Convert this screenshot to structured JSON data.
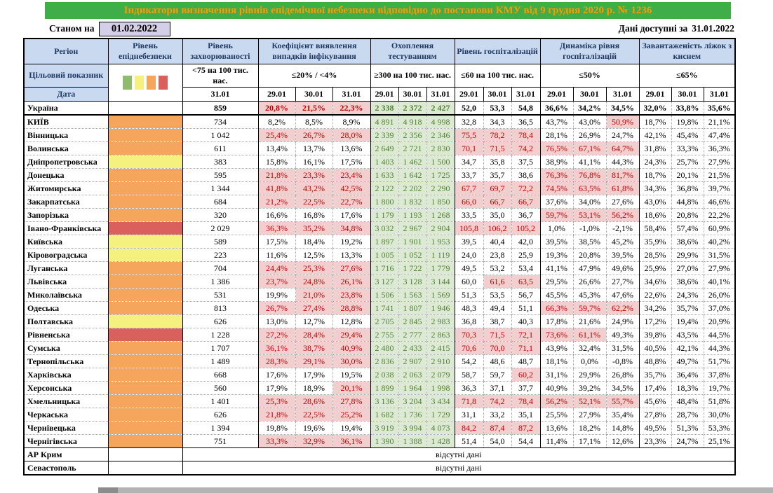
{
  "title": "Індикатори визначення рівнів епідемічної небезпеки відповідно до постанови КМУ від 9 грудня 2020 р. № 1236",
  "meta": {
    "as_of_label": "Станом на",
    "as_of_date": "01.02.2022",
    "available_label": "Дані доступні за",
    "available_date": "31.01.2022"
  },
  "colors": {
    "title_bg": "#3FAE49",
    "title_text": "#FF9900",
    "header_bg": "#C9DAF0",
    "header_text": "#1F3864",
    "highlight_bg": "#F2CECE",
    "highlight_text": "#C00000",
    "testing_bg": "#DCE9D3",
    "testing_text": "#538135",
    "badge_bg": "#D5CEE8"
  },
  "legend": {
    "names": [
      "green-level",
      "yellow-level",
      "orange-level",
      "red-level"
    ],
    "colors": [
      "#8FBB6F",
      "#F5F17E",
      "#F5A65C",
      "#D9605C"
    ]
  },
  "header": {
    "region_label": "Регіон",
    "target_row_label": "Цільовий показник",
    "date_row_label": "Дата",
    "level_title": "Рівень епіднебезпеки",
    "incidence_title": "Рівень захворюваності",
    "incidence_target": "<75 на 100 тис. нас.",
    "incidence_date": "31.01",
    "detection_title": "Коефіцієнт виявлення випадків інфікування",
    "detection_target": "≤20% / <4%",
    "testing_title": "Охоплення тестуванням",
    "testing_target": "≥300 на 100 тис. нас.",
    "hosp_title": "Рівень госпіталізацій",
    "hosp_target": "≤60 на 100 тис. нас.",
    "dynamics_title": "Динаміка рівня госпіталізацій",
    "dynamics_target": "≤50%",
    "beds_title": "Завантаженість ліжок з киснем",
    "beds_target": "≤65%",
    "dates": [
      "29.01",
      "30.01",
      "31.01"
    ]
  },
  "thresholds": {
    "detection": 20,
    "hosp": 60,
    "dynamics": 50,
    "beds": 65
  },
  "no_data_label": "відсутні дані",
  "rows": [
    {
      "name": "Україна",
      "level": "none",
      "total": true,
      "incidence": "859",
      "detection": [
        "20,8%",
        "21,5%",
        "22,3%"
      ],
      "testing": [
        "2 338",
        "2 372",
        "2 427"
      ],
      "hosp": [
        "52,0",
        "53,3",
        "54,8"
      ],
      "dynamics": [
        "36,6%",
        "34,2%",
        "34,5%"
      ],
      "beds": [
        "32,0%",
        "33,8%",
        "35,6%"
      ]
    },
    {
      "name": "КИЇВ",
      "level": "orange",
      "incidence": "734",
      "detection": [
        "8,2%",
        "8,5%",
        "8,9%"
      ],
      "testing": [
        "4 891",
        "4 918",
        "4 998"
      ],
      "hosp": [
        "32,8",
        "34,3",
        "36,5"
      ],
      "dynamics": [
        "43,7%",
        "43,0%",
        "50,9%"
      ],
      "beds": [
        "18,7%",
        "19,8%",
        "21,1%"
      ]
    },
    {
      "name": "Вінницька",
      "level": "orange",
      "incidence": "1 042",
      "detection": [
        "25,4%",
        "26,7%",
        "28,0%"
      ],
      "testing": [
        "2 339",
        "2 356",
        "2 346"
      ],
      "hosp": [
        "75,5",
        "78,2",
        "78,4"
      ],
      "dynamics": [
        "28,1%",
        "26,9%",
        "24,7%"
      ],
      "beds": [
        "42,1%",
        "45,4%",
        "47,4%"
      ]
    },
    {
      "name": "Волинська",
      "level": "orange",
      "incidence": "611",
      "detection": [
        "13,4%",
        "13,7%",
        "13,6%"
      ],
      "testing": [
        "2 649",
        "2 721",
        "2 830"
      ],
      "hosp": [
        "70,1",
        "71,5",
        "74,2"
      ],
      "dynamics": [
        "76,5%",
        "67,1%",
        "64,7%"
      ],
      "beds": [
        "31,8%",
        "33,3%",
        "36,3%"
      ]
    },
    {
      "name": "Дніпропетровська",
      "level": "yellow",
      "incidence": "383",
      "detection": [
        "15,8%",
        "16,1%",
        "17,5%"
      ],
      "testing": [
        "1 403",
        "1 462",
        "1 500"
      ],
      "hosp": [
        "34,7",
        "35,8",
        "37,5"
      ],
      "dynamics": [
        "38,9%",
        "41,1%",
        "44,3%"
      ],
      "beds": [
        "24,3%",
        "25,7%",
        "27,9%"
      ]
    },
    {
      "name": "Донецька",
      "level": "orange",
      "incidence": "595",
      "detection": [
        "21,8%",
        "23,3%",
        "23,4%"
      ],
      "testing": [
        "1 633",
        "1 642",
        "1 725"
      ],
      "hosp": [
        "33,7",
        "35,7",
        "38,6"
      ],
      "dynamics": [
        "76,3%",
        "76,8%",
        "81,7%"
      ],
      "beds": [
        "18,7%",
        "20,1%",
        "21,5%"
      ]
    },
    {
      "name": "Житомирська",
      "level": "orange",
      "incidence": "1 344",
      "detection": [
        "41,8%",
        "43,2%",
        "42,5%"
      ],
      "testing": [
        "2 122",
        "2 202",
        "2 290"
      ],
      "hosp": [
        "67,7",
        "69,7",
        "72,2"
      ],
      "dynamics": [
        "74,5%",
        "63,5%",
        "61,8%"
      ],
      "beds": [
        "34,3%",
        "36,8%",
        "39,7%"
      ]
    },
    {
      "name": "Закарпатська",
      "level": "orange",
      "incidence": "684",
      "detection": [
        "21,2%",
        "22,5%",
        "22,7%"
      ],
      "testing": [
        "1 800",
        "1 832",
        "1 850"
      ],
      "hosp": [
        "66,0",
        "66,7",
        "66,7"
      ],
      "dynamics": [
        "37,6%",
        "34,0%",
        "27,6%"
      ],
      "beds": [
        "43,0%",
        "44,8%",
        "46,6%"
      ]
    },
    {
      "name": "Запорізька",
      "level": "orange",
      "incidence": "320",
      "detection": [
        "16,6%",
        "16,8%",
        "17,6%"
      ],
      "testing": [
        "1 179",
        "1 193",
        "1 268"
      ],
      "hosp": [
        "33,5",
        "35,0",
        "36,7"
      ],
      "dynamics": [
        "59,7%",
        "53,1%",
        "56,2%"
      ],
      "beds": [
        "18,6%",
        "20,8%",
        "22,2%"
      ]
    },
    {
      "name": "Івано-Франківська",
      "level": "red",
      "incidence": "2 029",
      "detection": [
        "36,3%",
        "35,2%",
        "34,8%"
      ],
      "testing": [
        "3 032",
        "2 967",
        "2 904"
      ],
      "hosp": [
        "105,8",
        "106,2",
        "105,2"
      ],
      "dynamics": [
        "1,0%",
        "-1,0%",
        "-2,1%"
      ],
      "beds": [
        "58,4%",
        "57,4%",
        "60,9%"
      ]
    },
    {
      "name": "Київська",
      "level": "yellow",
      "incidence": "589",
      "detection": [
        "17,5%",
        "18,4%",
        "19,2%"
      ],
      "testing": [
        "1 897",
        "1 901",
        "1 953"
      ],
      "hosp": [
        "39,5",
        "40,4",
        "42,0"
      ],
      "dynamics": [
        "39,5%",
        "38,5%",
        "45,2%"
      ],
      "beds": [
        "35,9%",
        "38,6%",
        "40,2%"
      ]
    },
    {
      "name": "Кіровоградська",
      "level": "yellow",
      "incidence": "223",
      "detection": [
        "11,6%",
        "12,5%",
        "13,3%"
      ],
      "testing": [
        "1 005",
        "1 052",
        "1 119"
      ],
      "hosp": [
        "24,0",
        "23,8",
        "25,9"
      ],
      "dynamics": [
        "19,3%",
        "20,8%",
        "39,5%"
      ],
      "beds": [
        "28,5%",
        "29,9%",
        "31,5%"
      ]
    },
    {
      "name": "Луганська",
      "level": "orange",
      "incidence": "704",
      "detection": [
        "24,4%",
        "25,3%",
        "27,6%"
      ],
      "testing": [
        "1 716",
        "1 722",
        "1 779"
      ],
      "hosp": [
        "49,5",
        "53,2",
        "53,4"
      ],
      "dynamics": [
        "41,1%",
        "47,9%",
        "49,6%"
      ],
      "beds": [
        "25,9%",
        "27,0%",
        "27,9%"
      ]
    },
    {
      "name": "Львівська",
      "level": "orange",
      "incidence": "1 386",
      "detection": [
        "23,7%",
        "24,8%",
        "26,1%"
      ],
      "testing": [
        "3 127",
        "3 128",
        "3 144"
      ],
      "hosp": [
        "60,0",
        "61,6",
        "63,5"
      ],
      "dynamics": [
        "29,5%",
        "26,6%",
        "27,7%"
      ],
      "beds": [
        "34,6%",
        "38,6%",
        "40,1%"
      ]
    },
    {
      "name": "Миколаївська",
      "level": "orange",
      "incidence": "531",
      "detection": [
        "19,9%",
        "21,0%",
        "23,8%"
      ],
      "testing": [
        "1 506",
        "1 563",
        "1 569"
      ],
      "hosp": [
        "51,3",
        "53,5",
        "56,7"
      ],
      "dynamics": [
        "45,5%",
        "45,3%",
        "47,6%"
      ],
      "beds": [
        "22,6%",
        "24,3%",
        "26,0%"
      ]
    },
    {
      "name": "Одеська",
      "level": "orange",
      "incidence": "813",
      "detection": [
        "26,7%",
        "27,4%",
        "28,8%"
      ],
      "testing": [
        "1 741",
        "1 807",
        "1 946"
      ],
      "hosp": [
        "48,3",
        "49,4",
        "51,1"
      ],
      "dynamics": [
        "66,3%",
        "59,7%",
        "62,2%"
      ],
      "beds": [
        "34,2%",
        "35,7%",
        "37,0%"
      ]
    },
    {
      "name": "Полтавська",
      "level": "yellow",
      "incidence": "626",
      "detection": [
        "13,0%",
        "12,7%",
        "12,8%"
      ],
      "testing": [
        "2 705",
        "2 845",
        "2 983"
      ],
      "hosp": [
        "36,8",
        "38,7",
        "40,3"
      ],
      "dynamics": [
        "17,8%",
        "21,6%",
        "24,9%"
      ],
      "beds": [
        "17,2%",
        "19,4%",
        "20,9%"
      ]
    },
    {
      "name": "Рівненська",
      "level": "red",
      "incidence": "1 228",
      "detection": [
        "27,2%",
        "28,4%",
        "29,4%"
      ],
      "testing": [
        "2 755",
        "2 777",
        "2 863"
      ],
      "hosp": [
        "70,3",
        "71,5",
        "72,1"
      ],
      "dynamics": [
        "73,6%",
        "61,1%",
        "49,3%"
      ],
      "beds": [
        "39,8%",
        "43,5%",
        "44,5%"
      ]
    },
    {
      "name": "Сумська",
      "level": "orange",
      "incidence": "1 707",
      "detection": [
        "36,1%",
        "38,7%",
        "40,9%"
      ],
      "testing": [
        "2 480",
        "2 433",
        "2 415"
      ],
      "hosp": [
        "70,6",
        "70,0",
        "71,1"
      ],
      "dynamics": [
        "43,9%",
        "32,4%",
        "31,5%"
      ],
      "beds": [
        "40,5%",
        "42,1%",
        "44,3%"
      ]
    },
    {
      "name": "Тернопільська",
      "level": "orange",
      "incidence": "1 489",
      "detection": [
        "28,3%",
        "29,1%",
        "30,0%"
      ],
      "testing": [
        "2 836",
        "2 907",
        "2 910"
      ],
      "hosp": [
        "54,2",
        "48,6",
        "48,7"
      ],
      "dynamics": [
        "18,1%",
        "0,0%",
        "-0,8%"
      ],
      "beds": [
        "48,8%",
        "49,7%",
        "51,7%"
      ]
    },
    {
      "name": "Харківська",
      "level": "orange",
      "incidence": "668",
      "detection": [
        "17,6%",
        "17,9%",
        "19,5%"
      ],
      "testing": [
        "2 038",
        "2 063",
        "2 079"
      ],
      "hosp": [
        "58,7",
        "59,7",
        "60,2"
      ],
      "dynamics": [
        "31,1%",
        "29,9%",
        "26,8%"
      ],
      "beds": [
        "35,7%",
        "36,4%",
        "37,8%"
      ]
    },
    {
      "name": "Херсонська",
      "level": "orange",
      "incidence": "560",
      "detection": [
        "17,9%",
        "18,9%",
        "20,1%"
      ],
      "testing": [
        "1 899",
        "1 964",
        "1 998"
      ],
      "hosp": [
        "36,3",
        "37,1",
        "37,7"
      ],
      "dynamics": [
        "40,9%",
        "39,2%",
        "34,5%"
      ],
      "beds": [
        "17,4%",
        "18,3%",
        "19,7%"
      ]
    },
    {
      "name": "Хмельницька",
      "level": "orange",
      "incidence": "1 401",
      "detection": [
        "25,3%",
        "28,6%",
        "27,8%"
      ],
      "testing": [
        "3 136",
        "3 204",
        "3 434"
      ],
      "hosp": [
        "71,8",
        "74,2",
        "78,4"
      ],
      "dynamics": [
        "56,2%",
        "52,1%",
        "55,7%"
      ],
      "beds": [
        "45,6%",
        "48,4%",
        "51,8%"
      ]
    },
    {
      "name": "Черкаська",
      "level": "orange",
      "incidence": "626",
      "detection": [
        "21,8%",
        "22,5%",
        "25,2%"
      ],
      "testing": [
        "1 682",
        "1 736",
        "1 729"
      ],
      "hosp": [
        "31,1",
        "33,2",
        "35,1"
      ],
      "dynamics": [
        "25,5%",
        "27,9%",
        "35,4%"
      ],
      "beds": [
        "27,8%",
        "28,7%",
        "30,0%"
      ]
    },
    {
      "name": "Чернівецька",
      "level": "orange",
      "incidence": "1 394",
      "detection": [
        "19,8%",
        "19,6%",
        "19,4%"
      ],
      "testing": [
        "3 919",
        "3 994",
        "4 073"
      ],
      "hosp": [
        "84,2",
        "87,4",
        "87,2"
      ],
      "dynamics": [
        "13,6%",
        "18,2%",
        "14,8%"
      ],
      "beds": [
        "49,5%",
        "51,3%",
        "53,3%"
      ]
    },
    {
      "name": "Чернігівська",
      "level": "orange",
      "incidence": "751",
      "detection": [
        "33,3%",
        "32,9%",
        "36,1%"
      ],
      "testing": [
        "1 390",
        "1 388",
        "1 428"
      ],
      "hosp": [
        "51,4",
        "54,0",
        "54,4"
      ],
      "dynamics": [
        "11,4%",
        "17,1%",
        "12,6%"
      ],
      "beds": [
        "23,3%",
        "24,7%",
        "25,1%"
      ]
    },
    {
      "name": "АР Крим",
      "level": "none",
      "no_data": true
    },
    {
      "name": "Севастополь",
      "level": "none",
      "no_data": true
    }
  ]
}
